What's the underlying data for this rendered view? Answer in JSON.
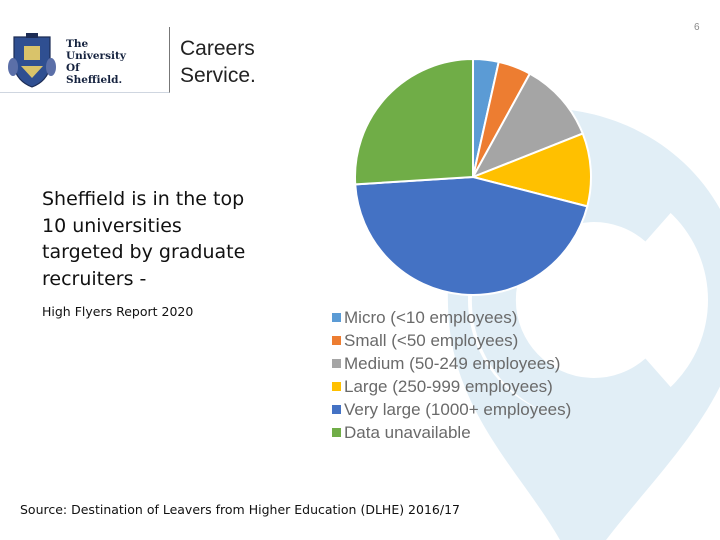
{
  "slide": {
    "page_number": "6"
  },
  "logo": {
    "university_name": [
      "The",
      "University",
      "Of",
      "Sheffield."
    ]
  },
  "header": {
    "title_lines": [
      "Careers",
      "Service."
    ]
  },
  "headline": {
    "lines": [
      "Sheffield is in the top",
      "10 universities",
      "targeted by graduate",
      "recruiters -"
    ],
    "subnote": "High Flyers Report 2020"
  },
  "footer": {
    "source": "Source: Destination of Leavers from Higher Education (DLHE) 2016/17"
  },
  "colors": {
    "brand_watermark": "#e1eef6"
  },
  "chart_data": {
    "type": "pie",
    "title": "",
    "categories": [
      "Micro (<10 employees)",
      "Small (<50 employees)",
      "Medium (50-249 employees)",
      "Large (250-999 employees)",
      "Very large (1000+ employees)",
      "Data unavailable"
    ],
    "values": [
      3.5,
      4.5,
      11,
      10,
      45,
      26
    ],
    "colors": [
      "#5b9bd5",
      "#ed7d31",
      "#a5a5a5",
      "#ffc000",
      "#4472c4",
      "#70ad47"
    ],
    "legend": "bottom"
  }
}
